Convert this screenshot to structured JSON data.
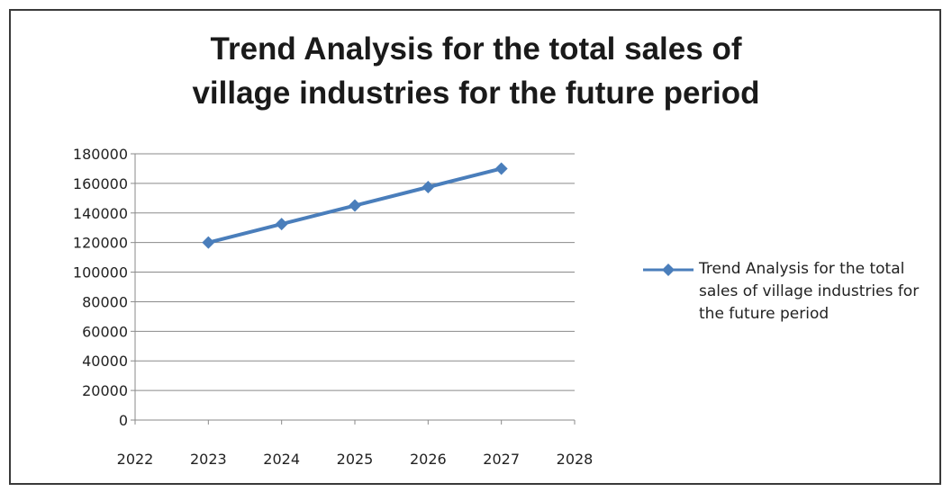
{
  "chart_data": {
    "type": "line",
    "title_line1": "Trend Analysis for  the total sales of",
    "title_line2": "village industries for the future period",
    "xlabel": "",
    "ylabel": "",
    "x_ticks": [
      "2022",
      "2023",
      "2024",
      "2025",
      "2026",
      "2027",
      "2028"
    ],
    "y_ticks": [
      "0",
      "20000",
      "40000",
      "60000",
      "80000",
      "100000",
      "120000",
      "140000",
      "160000",
      "180000"
    ],
    "xlim": [
      2022,
      2028
    ],
    "ylim": [
      0,
      180000
    ],
    "grid": "horizontal",
    "legend_position": "right",
    "series": [
      {
        "name": "Trend Analysis for  the total sales of village industries for the future period",
        "color": "#4a7ebb",
        "x": [
          2023,
          2024,
          2025,
          2026,
          2027
        ],
        "values": [
          120000,
          132500,
          145000,
          157500,
          170000
        ]
      }
    ]
  }
}
